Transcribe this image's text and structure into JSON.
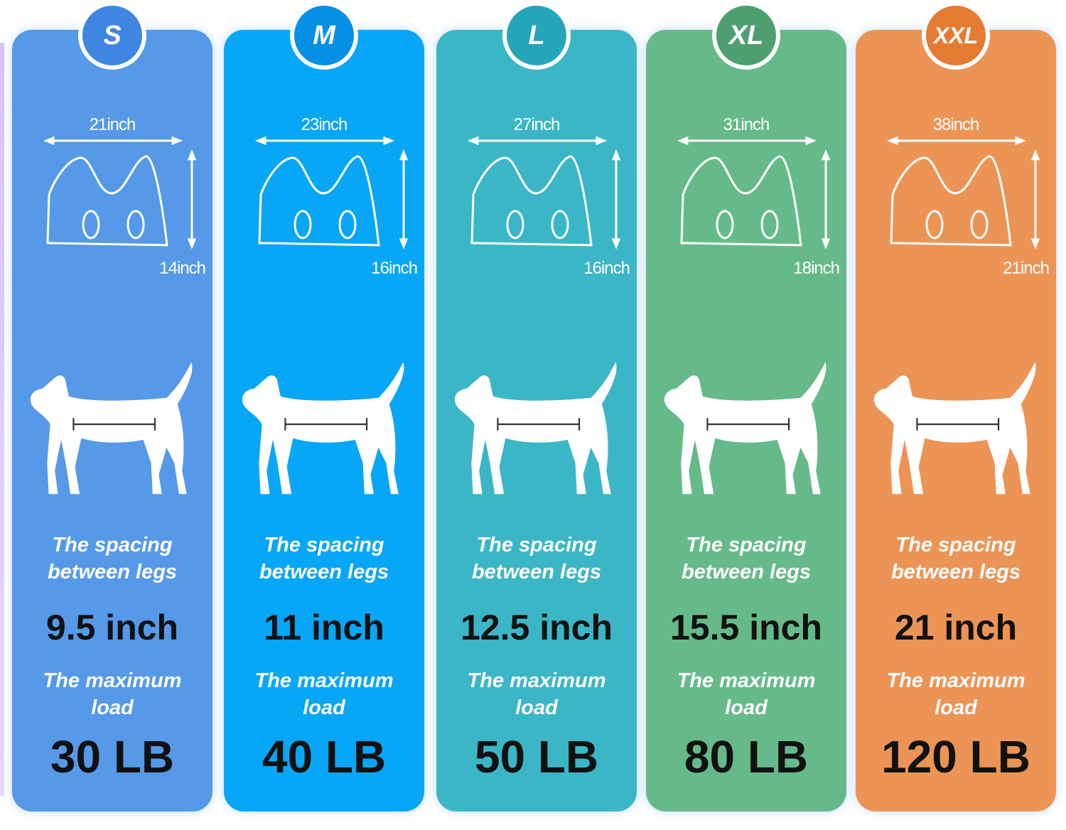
{
  "sizes": [
    {
      "size": "S",
      "color": "#5599e8",
      "badge_color": "#3f86e0",
      "width": "21inch",
      "height": "14inch",
      "spacing_label": "The spacing between legs",
      "spacing": "9.5 inch",
      "load_label": "The maximum load",
      "load": "30 LB",
      "dog_icon": "dachshund-icon"
    },
    {
      "size": "M",
      "color": "#08a6f6",
      "badge_color": "#0590e6",
      "width": "23inch",
      "height": "16inch",
      "spacing_label": "The spacing between legs",
      "spacing": "11 inch",
      "load_label": "The maximum load",
      "load": "40 LB",
      "dog_icon": "husky-icon"
    },
    {
      "size": "L",
      "color": "#3bb6c7",
      "badge_color": "#25a6b8",
      "width": "27inch",
      "height": "16inch",
      "spacing_label": "The spacing between legs",
      "spacing": "12.5 inch",
      "load_label": "The maximum load",
      "load": "50 LB",
      "dog_icon": "pointer-icon"
    },
    {
      "size": "XL",
      "color": "#66ba89",
      "badge_color": "#4e9f70",
      "width": "31inch",
      "height": "18inch",
      "spacing_label": "The spacing between legs",
      "spacing": "15.5 inch",
      "load_label": "The maximum load",
      "load": "80 LB",
      "dog_icon": "golden-retriever-icon"
    },
    {
      "size": "XXL",
      "color": "#ec9455",
      "badge_color": "#e57b33",
      "width": "38inch",
      "height": "21inch",
      "spacing_label": "The spacing between legs",
      "spacing": "21 inch",
      "load_label": "The maximum load",
      "load": "120 LB",
      "dog_icon": "doberman-icon"
    }
  ]
}
